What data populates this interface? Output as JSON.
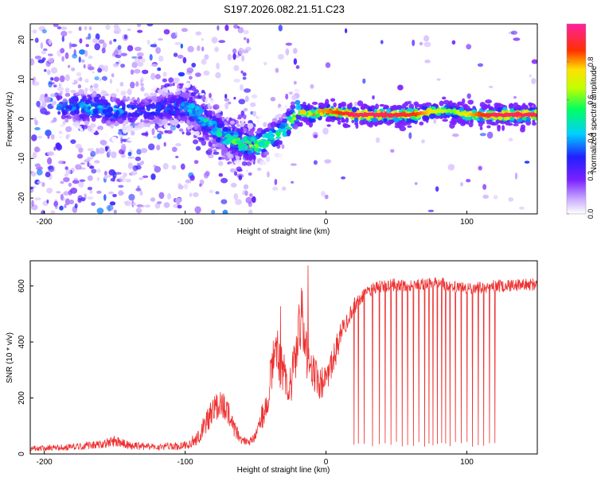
{
  "title": "S197.2026.082.21.51.C23",
  "colors": {
    "snr_line": "#ee3030",
    "axis": "#000000",
    "background": "#ffffff"
  },
  "chart_data": [
    {
      "type": "heatmap",
      "title": "S197.2026.082.21.51.C23",
      "xlabel": "Height of straight line (km)",
      "ylabel": "Frequency (Hz)",
      "xlim": [
        -210,
        150
      ],
      "ylim": [
        -24,
        24
      ],
      "xticks": [
        -200,
        -100,
        0,
        100
      ],
      "xtick_labels": [
        "-200",
        "-100",
        "0",
        "100"
      ],
      "yticks": [
        -20,
        -10,
        0,
        10,
        20
      ],
      "ytick_labels": [
        "-20",
        "-10",
        "0",
        "10",
        "20"
      ],
      "colorbar": {
        "label": "Normalized spectral amplitude",
        "range": [
          0,
          1
        ],
        "ticks": [
          0.0,
          0.2,
          0.4,
          0.6,
          0.8
        ],
        "tick_labels": [
          "0.0",
          "0.2",
          "0.4",
          "0.6",
          "0.8"
        ],
        "colormap": "rainbow (white, purple, blue, cyan, green, yellow, red, pink)"
      },
      "ridge": {
        "description": "dominant frequency track vs height",
        "x": [
          -185,
          -170,
          -150,
          -130,
          -110,
          -100,
          -90,
          -80,
          -70,
          -60,
          -50,
          -40,
          -30,
          -20,
          -10,
          0,
          20,
          40,
          60,
          80,
          90,
          100,
          120,
          150
        ],
        "freq": [
          3,
          3,
          2,
          2,
          3,
          3,
          1,
          -2,
          -5,
          -6,
          -7,
          -5,
          -3,
          2,
          1,
          2,
          1,
          1,
          1,
          2,
          2,
          1,
          1,
          1
        ],
        "amplitude": [
          0.35,
          0.45,
          0.4,
          0.3,
          0.35,
          0.45,
          0.5,
          0.5,
          0.55,
          0.6,
          0.6,
          0.55,
          0.5,
          0.7,
          0.75,
          0.8,
          0.95,
          0.95,
          0.9,
          0.7,
          0.6,
          0.75,
          0.95,
          0.95
        ]
      }
    },
    {
      "type": "line",
      "xlabel": "Height of straight line (km)",
      "ylabel": "SNR (10 * v/v)",
      "xlim": [
        -210,
        150
      ],
      "ylim": [
        0,
        690
      ],
      "xticks": [
        -200,
        -100,
        0,
        100
      ],
      "xtick_labels": [
        "-200",
        "-100",
        "0",
        "100"
      ],
      "yticks": [
        0,
        200,
        400,
        600
      ],
      "ytick_labels": [
        "0",
        "200",
        "400",
        "600"
      ],
      "series": [
        {
          "name": "SNR",
          "color": "#ee3030",
          "envelope_x": [
            -210,
            -180,
            -160,
            -150,
            -140,
            -120,
            -100,
            -90,
            -85,
            -75,
            -70,
            -65,
            -60,
            -55,
            -50,
            -45,
            -40,
            -35,
            -30,
            -25,
            -20,
            -17,
            -15,
            -10,
            -5,
            0,
            5,
            10,
            15,
            20,
            25,
            30,
            40,
            50,
            60,
            80,
            100,
            120,
            150
          ],
          "envelope_mean": [
            20,
            25,
            35,
            45,
            30,
            25,
            30,
            60,
            120,
            180,
            150,
            90,
            50,
            40,
            60,
            140,
            250,
            380,
            280,
            250,
            420,
            480,
            380,
            300,
            250,
            260,
            330,
            420,
            480,
            530,
            560,
            580,
            600,
            605,
            600,
            610,
            590,
            600,
            605
          ],
          "envelope_noise": [
            10,
            12,
            15,
            20,
            14,
            12,
            15,
            25,
            45,
            55,
            45,
            30,
            15,
            12,
            20,
            50,
            80,
            110,
            80,
            70,
            110,
            130,
            100,
            70,
            60,
            50,
            55,
            45,
            35,
            30,
            25,
            25,
            22,
            22,
            22,
            22,
            22,
            22,
            22
          ],
          "dropout_x": [
            20,
            23,
            27,
            33,
            38,
            42,
            46,
            50,
            54,
            58,
            62,
            66,
            70,
            73,
            76,
            79,
            82,
            85,
            88,
            92,
            96,
            100,
            104,
            108,
            112,
            116,
            120
          ],
          "dropout_min": 25
        }
      ]
    }
  ]
}
